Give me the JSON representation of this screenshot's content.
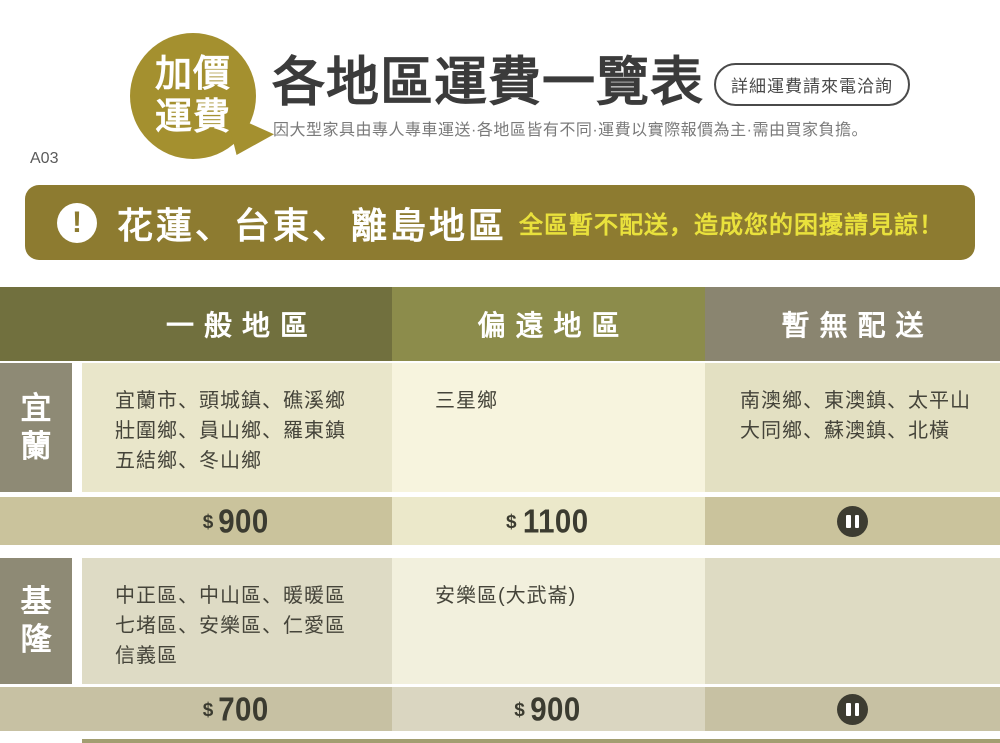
{
  "header": {
    "badge_line1": "加價",
    "badge_line2": "運費",
    "title": "各地區運費一覽表",
    "contact_pill": "詳細運費請來電洽詢",
    "subtitle": "因大型家具由專人專車運送·各地區皆有不同·運費以實際報價為主·需由買家負擔。",
    "code": "A03"
  },
  "notice": {
    "icon": "!",
    "regions": "花蓮、台東、離島地區",
    "message": "全區暫不配送，造成您的困擾請見諒！"
  },
  "table": {
    "columns": [
      {
        "label": "一般地區"
      },
      {
        "label": "偏遠地區"
      },
      {
        "label": "暫無配送"
      }
    ],
    "rows": [
      {
        "region": "宜蘭",
        "cells": {
          "general": [
            "宜蘭市、頭城鎮、礁溪鄉",
            "壯圍鄉、員山鄉、羅東鎮",
            "五結鄉、冬山鄉"
          ],
          "remote": [
            "三星鄉"
          ],
          "suspended": [
            "南澳鄉、東澳鎮、太平山",
            "大同鄉、蘇澳鎮、北橫"
          ]
        },
        "prices": {
          "general": {
            "symbol": "$",
            "value": "900"
          },
          "remote": {
            "symbol": "$",
            "value": "1100"
          },
          "suspended": "paused"
        }
      },
      {
        "region": "基隆",
        "cells": {
          "general": [
            "中正區、中山區、暖暖區",
            "七堵區、安樂區、仁愛區",
            "信義區"
          ],
          "remote": [
            "安樂區(大武崙)"
          ],
          "suspended": []
        },
        "prices": {
          "general": {
            "symbol": "$",
            "value": "700"
          },
          "remote": {
            "symbol": "$",
            "value": "900"
          },
          "suspended": "paused"
        }
      }
    ]
  },
  "colors": {
    "badge_gold": "#a4902f",
    "banner_olive": "#8d7b30",
    "banner_highlight_yellow": "#e9e13c",
    "header_general": "#71703e",
    "header_remote": "#8c8c4b",
    "header_suspended": "#8a8570",
    "row_label_gray": "#8e8a75",
    "price_text": "#3b3b30"
  }
}
